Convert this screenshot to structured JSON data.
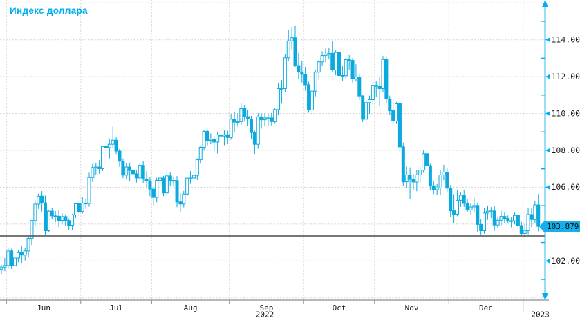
{
  "title": "Индекс доллара",
  "colors": {
    "accent": "#00AEEF",
    "candle": "#0CA9DF",
    "grid": "#DBD4D4",
    "axis_text": "#1A1A1A",
    "x_axis_line": "#8C8C8C",
    "reference_line": "#4A4A4A",
    "badge_bg": "#17AFE8"
  },
  "badge": {
    "last_price_label": "103.879"
  },
  "chart_data": {
    "type": "candlestick",
    "title": "Индекс доллара",
    "ylim": [
      99.8,
      116.2
    ],
    "grid": true,
    "y_axis_side": "right",
    "y_major_ticks": [
      102,
      104,
      106,
      108,
      110,
      112,
      114
    ],
    "y_tick_labels": [
      "102.000",
      "104.000",
      "106.000",
      "108.000",
      "110.000",
      "112.000",
      "114.000"
    ],
    "y_minor_ticks": [
      101,
      103,
      105,
      107,
      109,
      111,
      113,
      115
    ],
    "y_gridline_values": [
      100,
      102,
      104,
      106,
      108,
      110,
      112,
      114,
      116
    ],
    "x_month_labels": [
      "Jun",
      "Jul",
      "Aug",
      "Sep",
      "Oct",
      "Nov",
      "Dec"
    ],
    "year_labels": [
      "2022",
      "2023"
    ],
    "reference_line": 103.36,
    "last_price": 103.879,
    "columns": [
      "date",
      "open",
      "high",
      "low",
      "close"
    ],
    "candles": [
      [
        "2022-05-30",
        101.55,
        101.8,
        101.29,
        101.67
      ],
      [
        "2022-05-31",
        101.67,
        102.16,
        101.44,
        101.75
      ],
      [
        "2022-06-01",
        101.75,
        102.73,
        101.56,
        102.54
      ],
      [
        "2022-06-02",
        102.54,
        102.66,
        101.57,
        101.75
      ],
      [
        "2022-06-03",
        101.75,
        102.23,
        101.64,
        102.16
      ],
      [
        "2022-06-06",
        102.16,
        102.58,
        101.93,
        102.45
      ],
      [
        "2022-06-07",
        102.45,
        102.84,
        101.9,
        102.32
      ],
      [
        "2022-06-08",
        102.32,
        102.7,
        102.03,
        102.54
      ],
      [
        "2022-06-09",
        102.54,
        103.38,
        102.21,
        103.23
      ],
      [
        "2022-06-10",
        103.23,
        104.23,
        102.86,
        104.19
      ],
      [
        "2022-06-13",
        104.19,
        105.29,
        103.92,
        105.08
      ],
      [
        "2022-06-14",
        105.08,
        105.65,
        104.82,
        105.52
      ],
      [
        "2022-06-15",
        105.52,
        105.79,
        104.68,
        105.15
      ],
      [
        "2022-06-16",
        105.15,
        105.55,
        103.41,
        103.64
      ],
      [
        "2022-06-17",
        103.64,
        104.76,
        103.56,
        104.7
      ],
      [
        "2022-06-20",
        104.7,
        104.86,
        104.25,
        104.45
      ],
      [
        "2022-06-21",
        104.45,
        104.71,
        104.1,
        104.43
      ],
      [
        "2022-06-22",
        104.43,
        104.76,
        103.84,
        104.2
      ],
      [
        "2022-06-23",
        104.2,
        104.59,
        103.98,
        104.41
      ],
      [
        "2022-06-24",
        104.41,
        104.53,
        103.92,
        104.19
      ],
      [
        "2022-06-27",
        104.19,
        104.31,
        103.66,
        103.94
      ],
      [
        "2022-06-28",
        103.94,
        104.56,
        103.69,
        104.5
      ],
      [
        "2022-06-29",
        104.5,
        105.16,
        104.34,
        105.1
      ],
      [
        "2022-06-30",
        105.1,
        105.27,
        104.44,
        104.68
      ],
      [
        "2022-07-01",
        104.68,
        105.47,
        104.58,
        105.14
      ],
      [
        "2022-07-04",
        105.14,
        105.37,
        104.83,
        105.12
      ],
      [
        "2022-07-05",
        105.12,
        106.79,
        104.94,
        106.53
      ],
      [
        "2022-07-06",
        106.53,
        107.27,
        106.28,
        107.07
      ],
      [
        "2022-07-07",
        107.07,
        107.3,
        106.68,
        107.1
      ],
      [
        "2022-07-08",
        107.1,
        107.47,
        106.73,
        107.01
      ],
      [
        "2022-07-11",
        107.01,
        108.26,
        106.88,
        108.21
      ],
      [
        "2022-07-12",
        108.21,
        108.57,
        107.72,
        108.15
      ],
      [
        "2022-07-13",
        108.15,
        108.64,
        107.56,
        108.33
      ],
      [
        "2022-07-14",
        108.33,
        109.29,
        108.16,
        108.55
      ],
      [
        "2022-07-15",
        108.55,
        108.73,
        107.81,
        107.96
      ],
      [
        "2022-07-18",
        107.96,
        108.08,
        107.1,
        107.41
      ],
      [
        "2022-07-19",
        107.41,
        107.56,
        106.49,
        106.66
      ],
      [
        "2022-07-20",
        106.66,
        107.29,
        106.42,
        107.1
      ],
      [
        "2022-07-21",
        107.1,
        107.32,
        106.33,
        106.91
      ],
      [
        "2022-07-22",
        106.91,
        107.12,
        106.43,
        106.73
      ],
      [
        "2022-07-25",
        106.73,
        106.95,
        106.25,
        106.51
      ],
      [
        "2022-07-26",
        106.51,
        107.29,
        106.38,
        107.19
      ],
      [
        "2022-07-27",
        107.19,
        107.44,
        106.23,
        106.45
      ],
      [
        "2022-07-28",
        106.45,
        106.87,
        105.96,
        106.34
      ],
      [
        "2022-07-29",
        106.34,
        106.57,
        105.51,
        105.9
      ],
      [
        "2022-08-01",
        105.9,
        106.02,
        105.02,
        105.45
      ],
      [
        "2022-08-02",
        105.45,
        106.52,
        105.18,
        106.37
      ],
      [
        "2022-08-03",
        106.37,
        106.83,
        106.08,
        106.5
      ],
      [
        "2022-08-04",
        106.5,
        106.62,
        105.52,
        105.69
      ],
      [
        "2022-08-05",
        105.69,
        106.95,
        105.54,
        106.62
      ],
      [
        "2022-08-08",
        106.62,
        106.8,
        106.08,
        106.37
      ],
      [
        "2022-08-09",
        106.37,
        106.58,
        106.03,
        106.36
      ],
      [
        "2022-08-10",
        106.36,
        106.61,
        104.92,
        105.2
      ],
      [
        "2022-08-11",
        105.2,
        105.67,
        104.63,
        105.09
      ],
      [
        "2022-08-12",
        105.09,
        105.8,
        104.91,
        105.63
      ],
      [
        "2022-08-15",
        105.63,
        106.57,
        105.53,
        106.5
      ],
      [
        "2022-08-16",
        106.5,
        106.87,
        106.18,
        106.5
      ],
      [
        "2022-08-17",
        106.5,
        106.92,
        106.23,
        106.65
      ],
      [
        "2022-08-18",
        106.65,
        107.57,
        106.39,
        107.49
      ],
      [
        "2022-08-19",
        107.49,
        108.22,
        107.28,
        108.17
      ],
      [
        "2022-08-22",
        108.17,
        109.12,
        107.98,
        109.03
      ],
      [
        "2022-08-23",
        109.03,
        109.14,
        108.28,
        108.54
      ],
      [
        "2022-08-24",
        108.54,
        108.92,
        108.33,
        108.6
      ],
      [
        "2022-08-25",
        108.6,
        108.77,
        107.95,
        108.45
      ],
      [
        "2022-08-26",
        108.45,
        109.02,
        107.83,
        108.84
      ],
      [
        "2022-08-29",
        108.84,
        109.48,
        108.53,
        108.78
      ],
      [
        "2022-08-30",
        108.78,
        109.12,
        108.28,
        108.85
      ],
      [
        "2022-08-31",
        108.85,
        109.07,
        108.33,
        108.7
      ],
      [
        "2022-09-01",
        108.7,
        109.99,
        108.58,
        109.69
      ],
      [
        "2022-09-02",
        109.69,
        110.07,
        108.98,
        109.53
      ],
      [
        "2022-09-05",
        109.53,
        110.02,
        109.28,
        109.56
      ],
      [
        "2022-09-06",
        109.56,
        110.57,
        109.39,
        110.26
      ],
      [
        "2022-09-07",
        110.26,
        110.47,
        109.58,
        109.83
      ],
      [
        "2022-09-08",
        109.83,
        110.17,
        109.33,
        109.7
      ],
      [
        "2022-09-09",
        109.7,
        109.87,
        108.63,
        108.97
      ],
      [
        "2022-09-12",
        108.97,
        109.07,
        107.81,
        108.33
      ],
      [
        "2022-09-13",
        108.33,
        110.02,
        108.08,
        109.82
      ],
      [
        "2022-09-14",
        109.82,
        110.0,
        109.18,
        109.66
      ],
      [
        "2022-09-15",
        109.66,
        110.02,
        109.33,
        109.76
      ],
      [
        "2022-09-16",
        109.76,
        110.0,
        109.34,
        109.76
      ],
      [
        "2022-09-19",
        109.76,
        110.03,
        109.36,
        109.56
      ],
      [
        "2022-09-20",
        109.56,
        110.31,
        109.44,
        110.21
      ],
      [
        "2022-09-21",
        110.21,
        111.63,
        109.93,
        111.35
      ],
      [
        "2022-09-22",
        111.35,
        111.81,
        110.53,
        111.35
      ],
      [
        "2022-09-23",
        111.35,
        113.23,
        111.18,
        113.02
      ],
      [
        "2022-09-26",
        113.02,
        114.53,
        112.83,
        113.94
      ],
      [
        "2022-09-27",
        113.94,
        114.7,
        113.48,
        114.11
      ],
      [
        "2022-09-28",
        114.11,
        114.78,
        112.53,
        112.6
      ],
      [
        "2022-09-29",
        112.6,
        113.27,
        111.88,
        112.25
      ],
      [
        "2022-09-30",
        112.25,
        112.87,
        111.68,
        112.12
      ],
      [
        "2022-10-03",
        112.12,
        112.53,
        111.23,
        111.56
      ],
      [
        "2022-10-04",
        111.56,
        111.72,
        110.04,
        110.19
      ],
      [
        "2022-10-05",
        110.19,
        111.33,
        109.98,
        111.21
      ],
      [
        "2022-10-06",
        111.21,
        112.34,
        110.93,
        112.24
      ],
      [
        "2022-10-07",
        112.24,
        112.9,
        111.83,
        112.8
      ],
      [
        "2022-10-10",
        112.8,
        113.37,
        112.58,
        113.14
      ],
      [
        "2022-10-11",
        113.14,
        113.52,
        112.78,
        113.22
      ],
      [
        "2022-10-12",
        113.22,
        113.57,
        112.93,
        113.26
      ],
      [
        "2022-10-13",
        113.26,
        113.92,
        112.28,
        112.36
      ],
      [
        "2022-10-14",
        112.36,
        113.42,
        112.08,
        113.31
      ],
      [
        "2022-10-17",
        113.31,
        113.37,
        111.93,
        112.06
      ],
      [
        "2022-10-18",
        112.06,
        112.57,
        111.74,
        112.05
      ],
      [
        "2022-10-19",
        112.05,
        113.07,
        111.88,
        112.92
      ],
      [
        "2022-10-20",
        112.92,
        113.17,
        112.38,
        112.88
      ],
      [
        "2022-10-21",
        112.88,
        113.02,
        111.68,
        111.88
      ],
      [
        "2022-10-24",
        111.88,
        112.67,
        111.73,
        111.98
      ],
      [
        "2022-10-25",
        111.98,
        112.13,
        110.73,
        110.95
      ],
      [
        "2022-10-26",
        110.95,
        111.03,
        109.54,
        109.69
      ],
      [
        "2022-10-27",
        109.69,
        110.77,
        109.53,
        110.59
      ],
      [
        "2022-10-28",
        110.59,
        110.97,
        109.98,
        110.75
      ],
      [
        "2022-10-31",
        110.75,
        111.67,
        110.48,
        111.53
      ],
      [
        "2022-11-01",
        111.53,
        111.77,
        110.88,
        111.47
      ],
      [
        "2022-11-02",
        111.47,
        111.97,
        110.43,
        111.35
      ],
      [
        "2022-11-03",
        111.35,
        113.12,
        111.18,
        112.93
      ],
      [
        "2022-11-04",
        112.93,
        113.07,
        110.58,
        110.79
      ],
      [
        "2022-11-07",
        110.79,
        110.97,
        109.93,
        110.15
      ],
      [
        "2022-11-08",
        110.15,
        110.62,
        109.38,
        109.59
      ],
      [
        "2022-11-09",
        109.59,
        110.62,
        109.43,
        110.53
      ],
      [
        "2022-11-10",
        110.53,
        110.92,
        107.88,
        108.19
      ],
      [
        "2022-11-11",
        108.19,
        108.42,
        106.08,
        106.29
      ],
      [
        "2022-11-14",
        106.29,
        107.12,
        105.98,
        106.67
      ],
      [
        "2022-11-15",
        106.67,
        107.08,
        105.34,
        106.43
      ],
      [
        "2022-11-16",
        106.43,
        106.72,
        105.83,
        106.28
      ],
      [
        "2022-11-17",
        106.28,
        106.92,
        105.78,
        106.67
      ],
      [
        "2022-11-18",
        106.67,
        107.12,
        106.23,
        106.93
      ],
      [
        "2022-11-21",
        106.93,
        107.99,
        106.78,
        107.82
      ],
      [
        "2022-11-22",
        107.82,
        107.92,
        106.88,
        107.17
      ],
      [
        "2022-11-23",
        107.17,
        107.27,
        105.83,
        106.08
      ],
      [
        "2022-11-24",
        106.08,
        106.32,
        105.63,
        105.87
      ],
      [
        "2022-11-25",
        105.87,
        106.17,
        105.58,
        105.96
      ],
      [
        "2022-11-28",
        105.96,
        106.92,
        105.58,
        106.67
      ],
      [
        "2022-11-29",
        106.67,
        107.22,
        106.38,
        106.82
      ],
      [
        "2022-11-30",
        106.82,
        107.02,
        105.73,
        105.95
      ],
      [
        "2022-12-01",
        105.95,
        106.12,
        104.38,
        104.72
      ],
      [
        "2022-12-02",
        104.72,
        105.62,
        104.08,
        104.54
      ],
      [
        "2022-12-05",
        104.54,
        105.82,
        104.43,
        105.29
      ],
      [
        "2022-12-06",
        105.29,
        105.72,
        104.93,
        105.57
      ],
      [
        "2022-12-07",
        105.57,
        105.87,
        104.93,
        105.12
      ],
      [
        "2022-12-08",
        105.12,
        105.37,
        104.63,
        104.76
      ],
      [
        "2022-12-09",
        104.76,
        105.12,
        104.53,
        104.93
      ],
      [
        "2022-12-12",
        104.93,
        105.42,
        104.63,
        105.01
      ],
      [
        "2022-12-13",
        105.01,
        105.17,
        103.57,
        103.98
      ],
      [
        "2022-12-14",
        103.98,
        104.27,
        103.44,
        103.64
      ],
      [
        "2022-12-15",
        103.64,
        104.87,
        103.48,
        104.6
      ],
      [
        "2022-12-16",
        104.6,
        104.97,
        104.23,
        104.7
      ],
      [
        "2022-12-19",
        104.7,
        104.92,
        104.33,
        104.71
      ],
      [
        "2022-12-20",
        104.71,
        104.97,
        103.63,
        103.95
      ],
      [
        "2022-12-21",
        103.95,
        104.42,
        103.78,
        104.21
      ],
      [
        "2022-12-22",
        104.21,
        104.72,
        103.93,
        104.42
      ],
      [
        "2022-12-23",
        104.42,
        104.67,
        104.03,
        104.31
      ],
      [
        "2022-12-26",
        104.31,
        104.47,
        104.03,
        104.16
      ],
      [
        "2022-12-27",
        104.16,
        104.37,
        103.83,
        104.18
      ],
      [
        "2022-12-28",
        104.18,
        104.62,
        103.98,
        104.47
      ],
      [
        "2022-12-29",
        104.47,
        104.57,
        103.73,
        103.92
      ],
      [
        "2022-12-30",
        103.92,
        104.12,
        103.38,
        103.49
      ],
      [
        "2023-01-02",
        103.49,
        103.98,
        103.31,
        103.65
      ],
      [
        "2023-01-03",
        103.65,
        104.86,
        103.45,
        104.52
      ],
      [
        "2023-01-04",
        104.52,
        104.87,
        103.84,
        104.25
      ],
      [
        "2023-01-05",
        104.25,
        105.27,
        104.05,
        105.04
      ],
      [
        "2023-01-06",
        105.04,
        105.63,
        103.6,
        103.88
      ]
    ]
  }
}
